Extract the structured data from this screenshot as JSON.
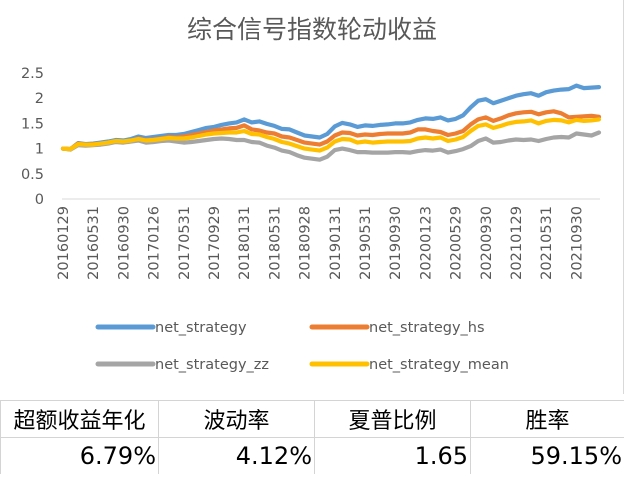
{
  "chart_data": {
    "type": "line",
    "title": "综合信号指数轮动收益",
    "ylim": [
      0,
      2.5
    ],
    "yticks": [
      "0",
      "0.5",
      "1",
      "1.5",
      "2",
      "2.5"
    ],
    "grid": false,
    "legend_position": "bottom",
    "x": [
      "20160129",
      "20160229",
      "20160331",
      "20160429",
      "20160531",
      "20160630",
      "20160729",
      "20160831",
      "20160930",
      "20161031",
      "20161130",
      "20161230",
      "20170126",
      "20170228",
      "20170331",
      "20170428",
      "20170531",
      "20170630",
      "20170731",
      "20170831",
      "20170929",
      "20171031",
      "20171130",
      "20171229",
      "20180131",
      "20180228",
      "20180330",
      "20180427",
      "20180531",
      "20180629",
      "20180731",
      "20180831",
      "20180928",
      "20181031",
      "20181130",
      "20181228",
      "20190131",
      "20190228",
      "20190329",
      "20190430",
      "20190531",
      "20190628",
      "20190731",
      "20190830",
      "20190930",
      "20191031",
      "20191129",
      "20191231",
      "20200123",
      "20200228",
      "20200331",
      "20200430",
      "20200529",
      "20200630",
      "20200731",
      "20200831",
      "20200930",
      "20201030",
      "20201130",
      "20201231",
      "20210129",
      "20210226",
      "20210331",
      "20210430",
      "20210531",
      "20210630",
      "20210730",
      "20210831",
      "20210930",
      "20211029",
      "20211130",
      "20211231"
    ],
    "x_tick_labels": [
      "20160129",
      "20160531",
      "20160930",
      "20170126",
      "20170531",
      "20170929",
      "20180131",
      "20180531",
      "20180928",
      "20190131",
      "20190531",
      "20190930",
      "20200123",
      "20200529",
      "20200930",
      "20210129",
      "20210531",
      "20210930"
    ],
    "series": [
      {
        "name": "net_strategy",
        "color": "#5b9bd5",
        "values": [
          1.0,
          0.99,
          1.11,
          1.09,
          1.1,
          1.12,
          1.14,
          1.17,
          1.16,
          1.19,
          1.24,
          1.21,
          1.23,
          1.25,
          1.27,
          1.27,
          1.29,
          1.33,
          1.37,
          1.41,
          1.43,
          1.47,
          1.5,
          1.52,
          1.58,
          1.52,
          1.54,
          1.49,
          1.45,
          1.39,
          1.38,
          1.32,
          1.26,
          1.24,
          1.22,
          1.29,
          1.44,
          1.51,
          1.48,
          1.43,
          1.46,
          1.45,
          1.47,
          1.48,
          1.5,
          1.5,
          1.52,
          1.57,
          1.6,
          1.59,
          1.62,
          1.56,
          1.59,
          1.66,
          1.82,
          1.95,
          1.98,
          1.9,
          1.95,
          2.0,
          2.05,
          2.08,
          2.1,
          2.05,
          2.12,
          2.15,
          2.17,
          2.18,
          2.25,
          2.2,
          2.21,
          2.22
        ]
      },
      {
        "name": "net_strategy_hs",
        "color": "#ed7d31",
        "values": [
          1.0,
          0.99,
          1.1,
          1.08,
          1.09,
          1.1,
          1.12,
          1.15,
          1.13,
          1.16,
          1.2,
          1.17,
          1.18,
          1.2,
          1.23,
          1.22,
          1.24,
          1.27,
          1.3,
          1.33,
          1.36,
          1.38,
          1.4,
          1.41,
          1.46,
          1.38,
          1.36,
          1.32,
          1.3,
          1.24,
          1.22,
          1.17,
          1.12,
          1.1,
          1.08,
          1.14,
          1.26,
          1.32,
          1.31,
          1.26,
          1.28,
          1.27,
          1.29,
          1.3,
          1.3,
          1.3,
          1.32,
          1.38,
          1.38,
          1.35,
          1.33,
          1.27,
          1.3,
          1.35,
          1.48,
          1.58,
          1.62,
          1.55,
          1.6,
          1.66,
          1.7,
          1.72,
          1.73,
          1.68,
          1.72,
          1.74,
          1.7,
          1.62,
          1.63,
          1.64,
          1.65,
          1.63
        ]
      },
      {
        "name": "net_strategy_zz",
        "color": "#a5a5a5",
        "values": [
          1.0,
          0.98,
          1.07,
          1.06,
          1.07,
          1.08,
          1.1,
          1.13,
          1.12,
          1.14,
          1.16,
          1.12,
          1.13,
          1.15,
          1.16,
          1.14,
          1.12,
          1.13,
          1.15,
          1.17,
          1.19,
          1.2,
          1.19,
          1.17,
          1.17,
          1.13,
          1.12,
          1.06,
          1.02,
          0.96,
          0.93,
          0.87,
          0.82,
          0.8,
          0.78,
          0.84,
          0.97,
          1.0,
          0.97,
          0.93,
          0.93,
          0.92,
          0.92,
          0.92,
          0.93,
          0.93,
          0.92,
          0.95,
          0.97,
          0.96,
          0.98,
          0.92,
          0.95,
          0.99,
          1.05,
          1.15,
          1.2,
          1.12,
          1.13,
          1.16,
          1.18,
          1.17,
          1.18,
          1.15,
          1.19,
          1.22,
          1.23,
          1.22,
          1.3,
          1.28,
          1.26,
          1.32
        ]
      },
      {
        "name": "net_strategy_mean",
        "color": "#ffc000",
        "values": [
          1.0,
          0.99,
          1.09,
          1.08,
          1.08,
          1.1,
          1.12,
          1.15,
          1.14,
          1.16,
          1.19,
          1.16,
          1.17,
          1.19,
          1.21,
          1.2,
          1.2,
          1.22,
          1.25,
          1.28,
          1.3,
          1.31,
          1.32,
          1.32,
          1.35,
          1.29,
          1.28,
          1.23,
          1.19,
          1.13,
          1.1,
          1.05,
          1.0,
          0.98,
          0.96,
          1.02,
          1.14,
          1.19,
          1.18,
          1.12,
          1.14,
          1.12,
          1.13,
          1.14,
          1.14,
          1.14,
          1.15,
          1.2,
          1.22,
          1.2,
          1.22,
          1.15,
          1.18,
          1.23,
          1.35,
          1.45,
          1.48,
          1.41,
          1.45,
          1.5,
          1.53,
          1.54,
          1.56,
          1.5,
          1.55,
          1.57,
          1.56,
          1.52,
          1.57,
          1.55,
          1.56,
          1.58
        ]
      }
    ]
  },
  "metrics": {
    "headers": [
      "超额收益年化",
      "波动率",
      "夏普比例",
      "胜率"
    ],
    "values": [
      "6.79%",
      "4.12%",
      "1.65",
      "59.15%"
    ]
  }
}
